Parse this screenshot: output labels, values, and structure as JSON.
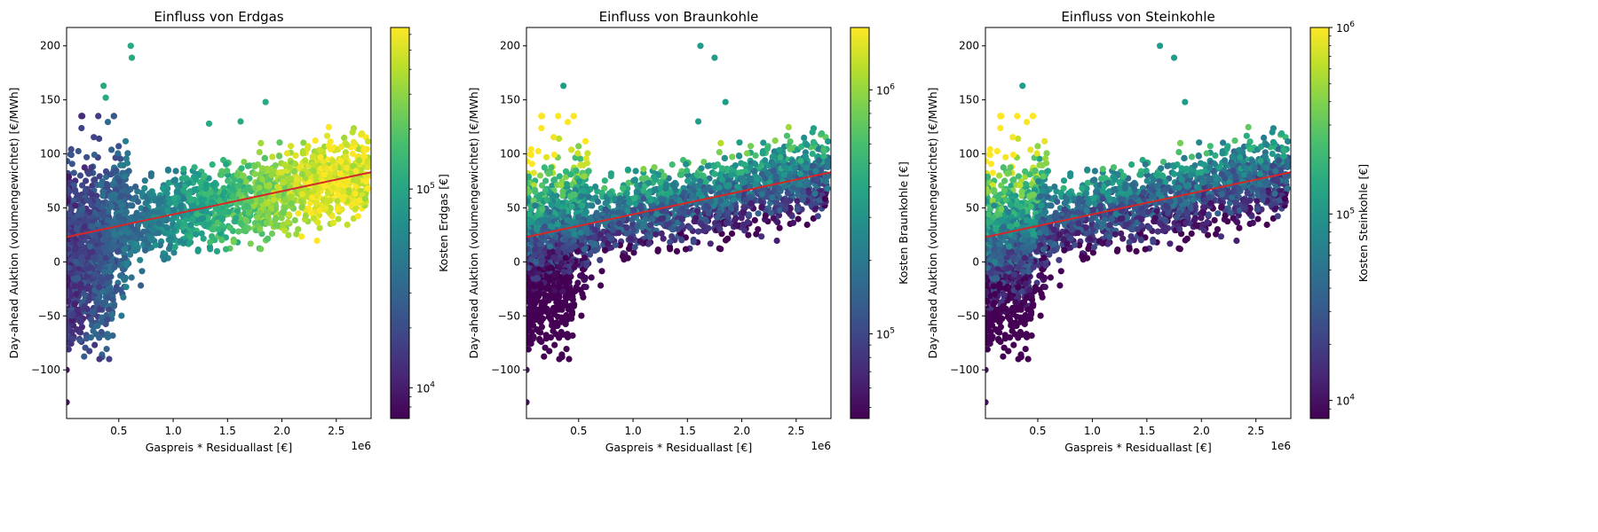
{
  "chart_data": [
    {
      "type": "scatter",
      "title": "Einfluss von Erdgas",
      "xlabel": "Gaspreis * Residuallast [€]",
      "ylabel": "Day-ahead Auktion (volumengewichtet) [€/MWh]",
      "x_offset_label": "1e6",
      "x_ticks": [
        "0.5",
        "1.0",
        "1.5",
        "2.0",
        "2.5"
      ],
      "y_ticks": [
        "−100",
        "−50",
        "0",
        "50",
        "100",
        "150",
        "200"
      ],
      "xlim": [
        0.02,
        2.82
      ],
      "ylim": [
        -145,
        217
      ],
      "colorbar_label": "Kosten Erdgas [€]",
      "colorbar_scale": "log",
      "colorbar_range": [
        7000,
        650000
      ],
      "colorbar_ticks": [
        {
          "value": 10000,
          "base": "10",
          "exp": "4"
        },
        {
          "value": 100000,
          "base": "10",
          "exp": "5"
        }
      ],
      "colormap": "viridis",
      "color_mode": "cost",
      "regression_line": {
        "x": [
          0.02,
          2.82
        ],
        "y": [
          23,
          83
        ],
        "color": "#d62728"
      },
      "series": [
        {
          "values": [
            [
              0.02,
              -130
            ],
            [
              0.02,
              -100
            ],
            [
              0.61,
              200
            ],
            [
              0.62,
              189
            ],
            [
              1.85,
              148
            ],
            [
              1.62,
              130
            ],
            [
              1.33,
              128
            ],
            [
              0.36,
              163
            ],
            [
              0.38,
              152
            ]
          ]
        }
      ]
    },
    {
      "type": "scatter",
      "title": "Einfluss von Braunkohle",
      "xlabel": "Gaspreis * Residuallast [€]",
      "ylabel": "Day-ahead Auktion (volumengewichtet) [€/MWh]",
      "x_offset_label": "1e6",
      "x_ticks": [
        "0.5",
        "1.0",
        "1.5",
        "2.0",
        "2.5"
      ],
      "y_ticks": [
        "−100",
        "−50",
        "0",
        "50",
        "100",
        "150",
        "200"
      ],
      "xlim": [
        0.02,
        2.82
      ],
      "ylim": [
        -145,
        217
      ],
      "colorbar_label": "Kosten Braunkohle [€]",
      "colorbar_scale": "log",
      "colorbar_range": [
        45000,
        1800000
      ],
      "colorbar_ticks": [
        {
          "value": 100000,
          "base": "10",
          "exp": "5"
        },
        {
          "value": 1000000,
          "base": "10",
          "exp": "6"
        }
      ],
      "colormap": "viridis",
      "color_mode": "lignite",
      "regression_line": {
        "x": [
          0.02,
          2.82
        ],
        "y": [
          23,
          83
        ],
        "color": "#d62728"
      },
      "series": [
        {
          "values": [
            [
              0.02,
              -130
            ],
            [
              0.02,
              -100
            ],
            [
              1.62,
              200
            ],
            [
              1.75,
              189
            ],
            [
              1.85,
              148
            ],
            [
              1.6,
              130
            ],
            [
              0.36,
              163
            ]
          ]
        }
      ]
    },
    {
      "type": "scatter",
      "title": "Einfluss von Steinkohle",
      "xlabel": "Gaspreis * Residuallast [€]",
      "ylabel": "Day-ahead Auktion (volumengewichtet) [€/MWh]",
      "x_offset_label": "1e6",
      "x_ticks": [
        "0.5",
        "1.0",
        "1.5",
        "2.0",
        "2.5"
      ],
      "y_ticks": [
        "−100",
        "−50",
        "0",
        "50",
        "100",
        "150",
        "200"
      ],
      "xlim": [
        0.02,
        2.82
      ],
      "ylim": [
        -145,
        217
      ],
      "colorbar_label": "Kosten Steinkohle [€]",
      "colorbar_scale": "log",
      "colorbar_range": [
        8000,
        1000000
      ],
      "colorbar_ticks": [
        {
          "value": 10000,
          "base": "10",
          "exp": "4"
        },
        {
          "value": 100000,
          "base": "10",
          "exp": "5"
        },
        {
          "value": 1000000,
          "base": "10",
          "exp": "6"
        }
      ],
      "colormap": "viridis",
      "color_mode": "coal",
      "regression_line": {
        "x": [
          0.02,
          2.82
        ],
        "y": [
          23,
          83
        ],
        "color": "#d62728"
      },
      "series": [
        {
          "values": [
            [
              0.02,
              -130
            ],
            [
              0.02,
              -100
            ],
            [
              1.62,
              200
            ],
            [
              1.75,
              189
            ],
            [
              1.85,
              148
            ],
            [
              0.36,
              163
            ]
          ]
        }
      ]
    }
  ]
}
